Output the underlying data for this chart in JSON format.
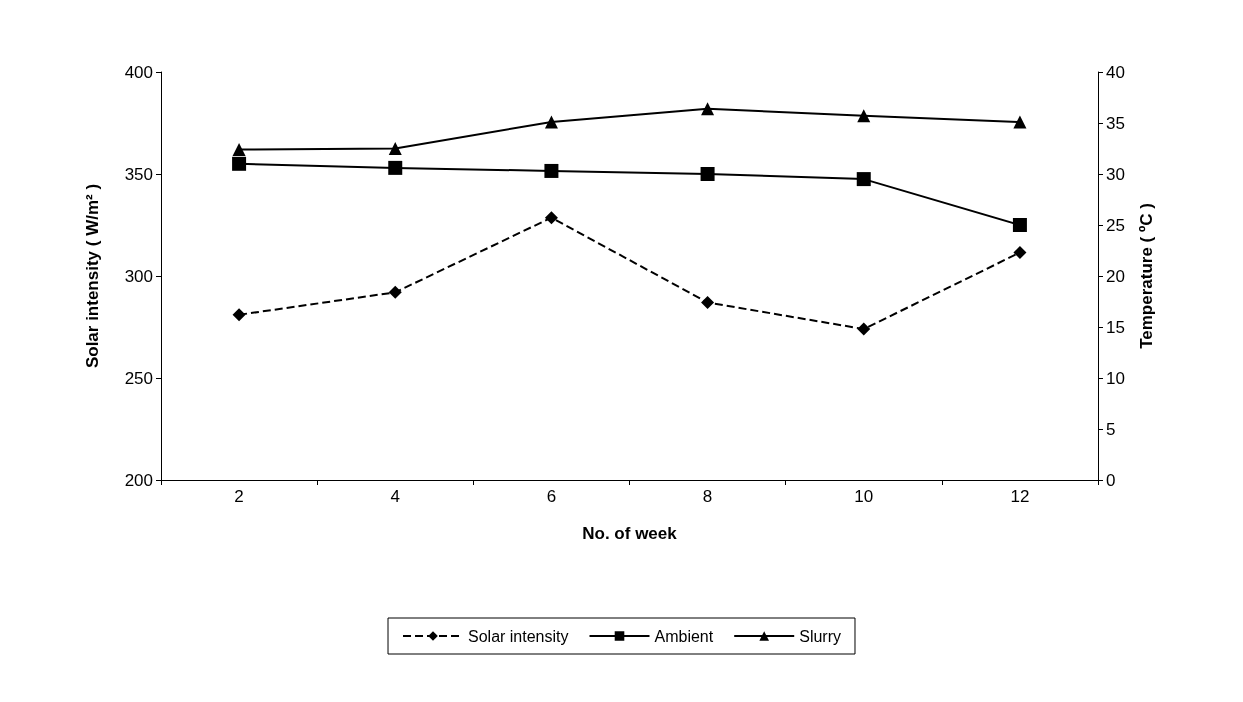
{
  "chart_data": {
    "type": "line",
    "xlabel": "No. of week",
    "ylabel": "Solar intensity ( W/m² )",
    "y2label": "Temperature ( ºC )",
    "categories": [
      "2",
      "4",
      "6",
      "8",
      "10",
      "12"
    ],
    "ylim": [
      200,
      400
    ],
    "yticks": [
      200,
      250,
      300,
      350,
      400
    ],
    "y2lim": [
      0,
      40
    ],
    "y2ticks": [
      0,
      5,
      10,
      15,
      20,
      25,
      30,
      35,
      40
    ],
    "grid": false,
    "legend": "bottom",
    "series": [
      {
        "name": "Solar intensity",
        "color": "#000000",
        "marker": "diamond",
        "line_style": "dashed",
        "values": [
          281,
          292,
          328.6,
          287,
          274,
          311.5
        ]
      },
      {
        "name": "Ambient",
        "color": "#000000",
        "marker": "square",
        "line_style": "solid",
        "axis": "y2",
        "values": [
          31.0,
          30.6,
          30.3,
          30.0,
          29.5,
          25.0
        ]
      },
      {
        "name": "Slurry",
        "color": "#000000",
        "marker": "triangle",
        "line_style": "solid",
        "axis": "y2",
        "values": [
          32.4,
          32.5,
          35.1,
          36.4,
          35.7,
          35.1
        ]
      }
    ]
  }
}
